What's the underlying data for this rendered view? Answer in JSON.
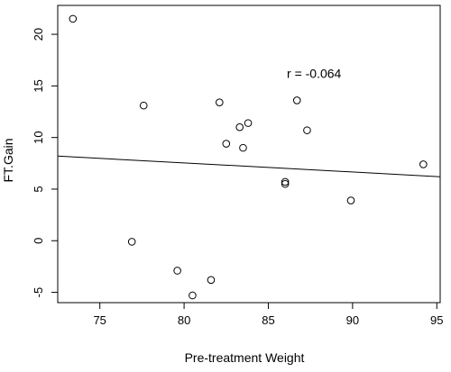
{
  "chart_data": {
    "type": "scatter",
    "xlabel": "Pre-treatment Weight",
    "ylabel": "FT.Gain",
    "xlim": [
      72.5,
      95.2
    ],
    "ylim": [
      -6.0,
      22.8
    ],
    "x_ticks": [
      75,
      80,
      85,
      90,
      95
    ],
    "y_ticks": [
      -5,
      0,
      5,
      10,
      15,
      20
    ],
    "series": [
      {
        "points": [
          {
            "x": 73.4,
            "y": 21.5
          },
          {
            "x": 77.6,
            "y": 13.1
          },
          {
            "x": 76.9,
            "y": -0.1
          },
          {
            "x": 79.6,
            "y": -2.9
          },
          {
            "x": 80.5,
            "y": -5.3
          },
          {
            "x": 81.6,
            "y": -3.8
          },
          {
            "x": 82.1,
            "y": 13.4
          },
          {
            "x": 82.5,
            "y": 9.4
          },
          {
            "x": 83.3,
            "y": 11.0
          },
          {
            "x": 83.5,
            "y": 9.0
          },
          {
            "x": 83.8,
            "y": 11.4
          },
          {
            "x": 86.0,
            "y": 5.7
          },
          {
            "x": 86.0,
            "y": 5.5
          },
          {
            "x": 86.7,
            "y": 13.6
          },
          {
            "x": 87.3,
            "y": 10.7
          },
          {
            "x": 89.9,
            "y": 3.9
          },
          {
            "x": 94.2,
            "y": 7.4
          }
        ]
      }
    ],
    "fit_line": {
      "x": [
        72.5,
        95.2
      ],
      "y": [
        8.2,
        6.2
      ]
    },
    "annotation": {
      "text": "r =  -0.064",
      "x": 86.1,
      "y": 16.2
    },
    "grid": false,
    "legend": "none"
  }
}
